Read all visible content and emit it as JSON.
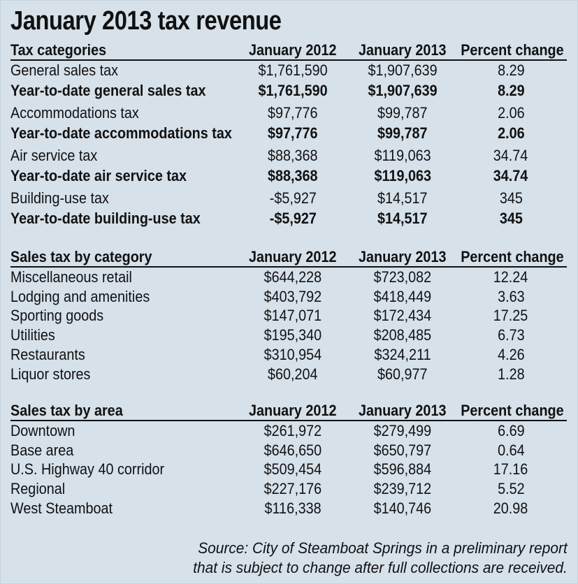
{
  "title": "January 2013 tax revenue",
  "tax_table": {
    "headers": [
      "Tax categories",
      "January 2012",
      "January 2013",
      "Percent change"
    ],
    "groups": [
      {
        "rows": [
          {
            "label": "General sales tax",
            "jan2012": "$1,761,590",
            "jan2013": "$1,907,639",
            "pct": "8.29"
          },
          {
            "label": "Year-to-date general sales tax",
            "jan2012": "$1,761,590",
            "jan2013": "$1,907,639",
            "pct": "8.29"
          }
        ]
      },
      {
        "rows": [
          {
            "label": "Accommodations tax",
            "jan2012": "$97,776",
            "jan2013": "$99,787",
            "pct": "2.06"
          },
          {
            "label": "Year-to-date accommodations tax",
            "jan2012": "$97,776",
            "jan2013": "$99,787",
            "pct": "2.06"
          }
        ]
      },
      {
        "rows": [
          {
            "label": "Air service tax",
            "jan2012": "$88,368",
            "jan2013": "$119,063",
            "pct": "34.74"
          },
          {
            "label": "Year-to-date air service tax",
            "jan2012": "$88,368",
            "jan2013": "$119,063",
            "pct": "34.74"
          }
        ]
      },
      {
        "rows": [
          {
            "label": "Building-use tax",
            "jan2012": "-$5,927",
            "jan2013": "$14,517",
            "pct": "345"
          },
          {
            "label": "Year-to-date building-use tax",
            "jan2012": "-$5,927",
            "jan2013": "$14,517",
            "pct": "345"
          }
        ]
      }
    ]
  },
  "category_table": {
    "headers": [
      "Sales tax by category",
      "January 2012",
      "January 2013",
      "Percent change"
    ],
    "rows": [
      {
        "label": "Miscellaneous retail",
        "jan2012": "$644,228",
        "jan2013": "$723,082",
        "pct": "12.24"
      },
      {
        "label": "Lodging and amenities",
        "jan2012": "$403,792",
        "jan2013": "$418,449",
        "pct": "3.63"
      },
      {
        "label": "Sporting goods",
        "jan2012": "$147,071",
        "jan2013": "$172,434",
        "pct": "17.25"
      },
      {
        "label": "Utilities",
        "jan2012": "$195,340",
        "jan2013": "$208,485",
        "pct": "6.73"
      },
      {
        "label": "Restaurants",
        "jan2012": "$310,954",
        "jan2013": "$324,211",
        "pct": "4.26"
      },
      {
        "label": "Liquor stores",
        "jan2012": "$60,204",
        "jan2013": "$60,977",
        "pct": "1.28"
      }
    ]
  },
  "area_table": {
    "headers": [
      "Sales tax by area",
      "January 2012",
      "January 2013",
      "Percent change"
    ],
    "rows": [
      {
        "label": "Downtown",
        "jan2012": "$261,972",
        "jan2013": "$279,499",
        "pct": "6.69"
      },
      {
        "label": "Base area",
        "jan2012": "$646,650",
        "jan2013": "$650,797",
        "pct": "0.64"
      },
      {
        "label": "U.S. Highway 40 corridor",
        "jan2012": "$509,454",
        "jan2013": "$596,884",
        "pct": "17.16"
      },
      {
        "label": "Regional",
        "jan2012": "$227,176",
        "jan2013": "$239,712",
        "pct": "5.52"
      },
      {
        "label": "West Steamboat",
        "jan2012": "$116,338",
        "jan2013": "$140,746",
        "pct": "20.98"
      }
    ]
  },
  "source": {
    "line1": "Source: City of Steamboat Springs in a preliminary report",
    "line2": "that is subject to change after full collections are received."
  },
  "colors": {
    "background": "#d6e1ea",
    "text": "#111111"
  }
}
